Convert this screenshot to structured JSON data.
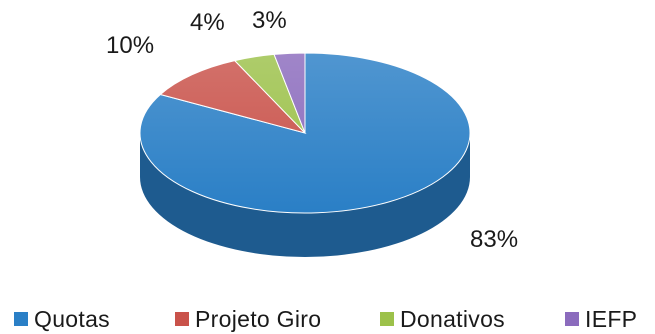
{
  "chart_data": {
    "type": "pie",
    "title": "",
    "categories": [
      "Quotas",
      "Projeto Giro",
      "Donativos",
      "IEFP"
    ],
    "values": [
      83,
      10,
      4,
      3
    ],
    "value_labels": [
      "83%",
      "10%",
      "4%",
      "3%"
    ],
    "colors": [
      "#2a7fc6",
      "#c9524a",
      "#9cc14a",
      "#8b6bbd"
    ],
    "legend_placement": "bottom",
    "style": "3d"
  }
}
